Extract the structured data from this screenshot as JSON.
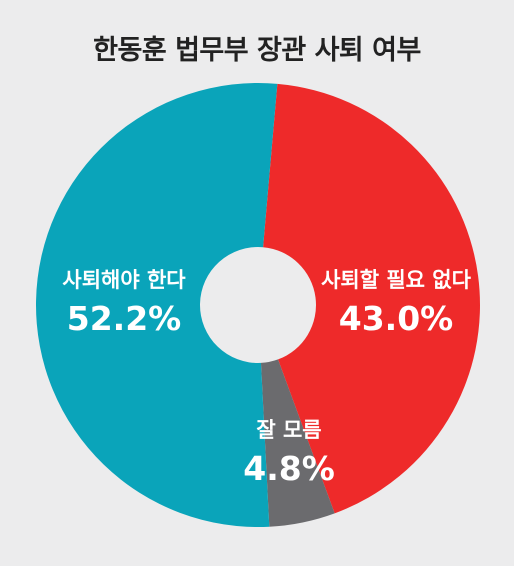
{
  "chart_data": {
    "type": "pie",
    "title": "한동훈 법무부 장관 사퇴 여부",
    "categories": [
      "사퇴할 필요 없다",
      "잘 모름",
      "사퇴해야 한다"
    ],
    "values": [
      43.0,
      4.8,
      52.2
    ],
    "value_labels": [
      "43.0%",
      "4.8%",
      "52.2%"
    ],
    "colors": [
      "#ee2a2a",
      "#6b6b6e",
      "#0aa4ba"
    ],
    "donut": true,
    "start": "top, clockwise",
    "legend": "none"
  }
}
